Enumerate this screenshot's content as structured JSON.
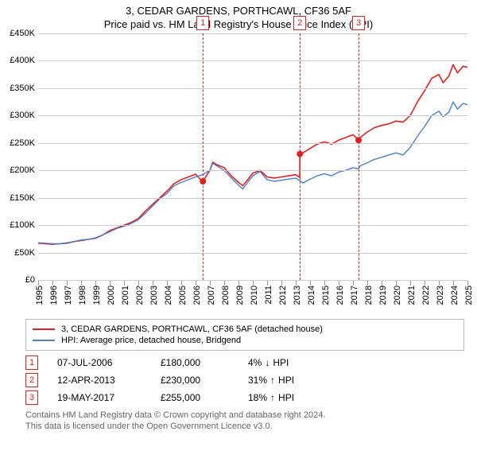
{
  "title": "3, CEDAR GARDENS, PORTHCAWL, CF36 5AF",
  "subtitle": "Price paid vs. HM Land Registry's House Price Index (HPI)",
  "chart": {
    "type": "line",
    "background": "#ffffff",
    "grid_color": "#cccccc",
    "axis_color": "#999999",
    "label_fontsize": 11,
    "title_fontsize": 13,
    "y": {
      "min": 0,
      "max": 450000,
      "step": 50000,
      "labels": [
        "£0",
        "£50K",
        "£100K",
        "£150K",
        "£200K",
        "£250K",
        "£300K",
        "£350K",
        "£400K",
        "£450K"
      ]
    },
    "x": {
      "min": 1995,
      "max": 2025,
      "step": 1,
      "labels": [
        "1995",
        "1996",
        "1997",
        "1998",
        "1999",
        "2000",
        "2001",
        "2002",
        "2003",
        "2004",
        "2005",
        "2006",
        "2007",
        "2008",
        "2009",
        "2010",
        "2011",
        "2012",
        "2013",
        "2014",
        "2015",
        "2016",
        "2017",
        "2018",
        "2019",
        "2020",
        "2021",
        "2022",
        "2023",
        "2024",
        "2025"
      ]
    },
    "series": [
      {
        "name": "3, CEDAR GARDENS, PORTHCAWL, CF36 5AF (detached house)",
        "color": "#e02020",
        "width": 1.6,
        "data": [
          [
            1995.0,
            67000
          ],
          [
            1995.5,
            66000
          ],
          [
            1996.0,
            65000
          ],
          [
            1996.5,
            66000
          ],
          [
            1997.0,
            67000
          ],
          [
            1997.5,
            70000
          ],
          [
            1998.0,
            72000
          ],
          [
            1998.5,
            74000
          ],
          [
            1999.0,
            76000
          ],
          [
            1999.5,
            82000
          ],
          [
            2000.0,
            90000
          ],
          [
            2000.5,
            95000
          ],
          [
            2001.0,
            100000
          ],
          [
            2001.5,
            105000
          ],
          [
            2002.0,
            112000
          ],
          [
            2002.5,
            126000
          ],
          [
            2003.0,
            138000
          ],
          [
            2003.5,
            150000
          ],
          [
            2004.0,
            162000
          ],
          [
            2004.5,
            176000
          ],
          [
            2005.0,
            183000
          ],
          [
            2005.5,
            188000
          ],
          [
            2006.0,
            193000
          ],
          [
            2006.5,
            179000
          ],
          [
            2006.51,
            180000
          ],
          [
            2007.0,
            200000
          ],
          [
            2007.2,
            215000
          ],
          [
            2007.5,
            210000
          ],
          [
            2008.0,
            205000
          ],
          [
            2008.5,
            190000
          ],
          [
            2009.0,
            178000
          ],
          [
            2009.3,
            172000
          ],
          [
            2009.7,
            185000
          ],
          [
            2010.0,
            195000
          ],
          [
            2010.5,
            200000
          ],
          [
            2011.0,
            188000
          ],
          [
            2011.5,
            186000
          ],
          [
            2012.0,
            188000
          ],
          [
            2012.5,
            190000
          ],
          [
            2013.0,
            192000
          ],
          [
            2013.28,
            187000
          ],
          [
            2013.29,
            230000
          ],
          [
            2013.5,
            232000
          ],
          [
            2014.0,
            240000
          ],
          [
            2014.5,
            248000
          ],
          [
            2015.0,
            252000
          ],
          [
            2015.5,
            248000
          ],
          [
            2016.0,
            255000
          ],
          [
            2016.5,
            260000
          ],
          [
            2017.0,
            265000
          ],
          [
            2017.38,
            256000
          ],
          [
            2017.39,
            255000
          ],
          [
            2017.5,
            260000
          ],
          [
            2018.0,
            270000
          ],
          [
            2018.5,
            278000
          ],
          [
            2019.0,
            282000
          ],
          [
            2019.5,
            285000
          ],
          [
            2020.0,
            290000
          ],
          [
            2020.5,
            288000
          ],
          [
            2021.0,
            300000
          ],
          [
            2021.5,
            325000
          ],
          [
            2022.0,
            345000
          ],
          [
            2022.5,
            368000
          ],
          [
            2023.0,
            375000
          ],
          [
            2023.3,
            360000
          ],
          [
            2023.7,
            372000
          ],
          [
            2024.0,
            393000
          ],
          [
            2024.3,
            378000
          ],
          [
            2024.7,
            390000
          ],
          [
            2025.0,
            388000
          ]
        ]
      },
      {
        "name": "HPI: Average price, detached house, Bridgend",
        "color": "#4a7ec8",
        "width": 1.4,
        "data": [
          [
            1995.0,
            68000
          ],
          [
            1995.5,
            67000
          ],
          [
            1996.0,
            66000
          ],
          [
            1996.5,
            66000
          ],
          [
            1997.0,
            68000
          ],
          [
            1997.5,
            70000
          ],
          [
            1998.0,
            73000
          ],
          [
            1998.5,
            74000
          ],
          [
            1999.0,
            77000
          ],
          [
            1999.5,
            82000
          ],
          [
            2000.0,
            88000
          ],
          [
            2000.5,
            94000
          ],
          [
            2001.0,
            98000
          ],
          [
            2001.5,
            103000
          ],
          [
            2002.0,
            110000
          ],
          [
            2002.5,
            122000
          ],
          [
            2003.0,
            135000
          ],
          [
            2003.5,
            148000
          ],
          [
            2004.0,
            158000
          ],
          [
            2004.5,
            172000
          ],
          [
            2005.0,
            178000
          ],
          [
            2005.5,
            183000
          ],
          [
            2006.0,
            188000
          ],
          [
            2006.5,
            192000
          ],
          [
            2007.0,
            200000
          ],
          [
            2007.2,
            213000
          ],
          [
            2007.5,
            208000
          ],
          [
            2008.0,
            200000
          ],
          [
            2008.5,
            186000
          ],
          [
            2009.0,
            173000
          ],
          [
            2009.3,
            166000
          ],
          [
            2009.7,
            180000
          ],
          [
            2010.0,
            190000
          ],
          [
            2010.5,
            198000
          ],
          [
            2011.0,
            183000
          ],
          [
            2011.5,
            180000
          ],
          [
            2012.0,
            182000
          ],
          [
            2012.5,
            184000
          ],
          [
            2013.0,
            186000
          ],
          [
            2013.29,
            181000
          ],
          [
            2013.5,
            177000
          ],
          [
            2014.0,
            184000
          ],
          [
            2014.5,
            190000
          ],
          [
            2015.0,
            194000
          ],
          [
            2015.5,
            190000
          ],
          [
            2016.0,
            197000
          ],
          [
            2016.5,
            200000
          ],
          [
            2017.0,
            205000
          ],
          [
            2017.39,
            203000
          ],
          [
            2017.5,
            208000
          ],
          [
            2018.0,
            214000
          ],
          [
            2018.5,
            220000
          ],
          [
            2019.0,
            224000
          ],
          [
            2019.5,
            228000
          ],
          [
            2020.0,
            232000
          ],
          [
            2020.5,
            228000
          ],
          [
            2021.0,
            242000
          ],
          [
            2021.5,
            262000
          ],
          [
            2022.0,
            280000
          ],
          [
            2022.5,
            300000
          ],
          [
            2023.0,
            308000
          ],
          [
            2023.3,
            298000
          ],
          [
            2023.7,
            306000
          ],
          [
            2024.0,
            325000
          ],
          [
            2024.3,
            312000
          ],
          [
            2024.7,
            322000
          ],
          [
            2025.0,
            320000
          ]
        ]
      }
    ],
    "sale_points": {
      "color": "#e02020",
      "radius": 4,
      "points": [
        [
          2006.51,
          180000
        ],
        [
          2013.29,
          230000
        ],
        [
          2017.39,
          255000
        ]
      ]
    },
    "markers": [
      {
        "n": "1",
        "year": 2006.51
      },
      {
        "n": "2",
        "year": 2013.29
      },
      {
        "n": "3",
        "year": 2017.39
      }
    ],
    "marker_color": "#e02020"
  },
  "legend": [
    {
      "color": "#e02020",
      "label": "3, CEDAR GARDENS, PORTHCAWL, CF36 5AF (detached house)"
    },
    {
      "color": "#4a7ec8",
      "label": "HPI: Average price, detached house, Bridgend"
    }
  ],
  "events": [
    {
      "n": "1",
      "date": "07-JUL-2006",
      "price": "£180,000",
      "diff": "4%",
      "dir": "down",
      "suffix": "HPI"
    },
    {
      "n": "2",
      "date": "12-APR-2013",
      "price": "£230,000",
      "diff": "31%",
      "dir": "up",
      "suffix": "HPI"
    },
    {
      "n": "3",
      "date": "19-MAY-2017",
      "price": "£255,000",
      "diff": "18%",
      "dir": "up",
      "suffix": "HPI"
    }
  ],
  "footer": {
    "line1": "Contains HM Land Registry data © Crown copyright and database right 2024.",
    "line2": "This data is licensed under the Open Government Licence v3.0."
  },
  "glyphs": {
    "up": "↑",
    "down": "↓"
  }
}
